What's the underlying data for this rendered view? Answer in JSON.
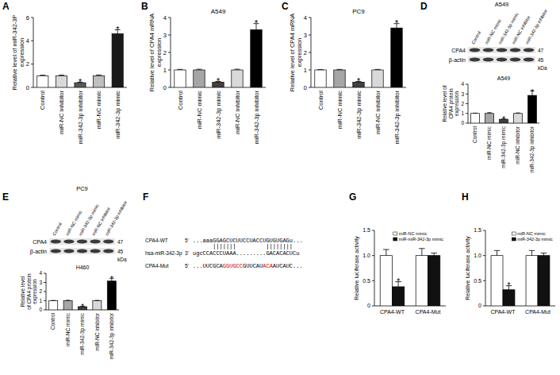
{
  "chart_data": [
    {
      "type": "bar",
      "panel": "A",
      "ylabel": "Relative level of miR-342-3P expression",
      "categories": [
        "Control",
        "miR-NC inhibitor",
        "miR-342-3p inhibitor",
        "miR-NC mimic",
        "miR-342-3p mimic"
      ],
      "values": [
        1,
        1,
        0.4,
        1,
        4.6
      ],
      "errors": [
        0.05,
        0.06,
        0.05,
        0.07,
        0.35
      ],
      "colors": [
        "#ffffff",
        "#d9d9d9",
        "#595959",
        "#bfbfbf",
        "#1a1a1a"
      ],
      "significance": [
        null,
        null,
        "*",
        null,
        "*"
      ],
      "ylim": [
        0,
        6
      ],
      "yticks": [
        0,
        2,
        4,
        6
      ]
    },
    {
      "type": "bar",
      "panel": "B",
      "title": "A549",
      "ylabel": "Relative level of CPA4 mRNA expression",
      "categories": [
        "Control",
        "miR-NC mimic",
        "miR-342-3p mimic",
        "miR-NC inhibitor",
        "miR-342-3p inhibitor"
      ],
      "values": [
        1,
        1,
        0.3,
        1,
        3.3
      ],
      "errors": [
        0.03,
        0.04,
        0.04,
        0.04,
        0.35
      ],
      "colors": [
        "#ffffff",
        "#a6a6a6",
        "#404040",
        "#d9d9d9",
        "#000000"
      ],
      "significance": [
        null,
        null,
        "*",
        null,
        "*"
      ],
      "ylim": [
        0,
        4
      ],
      "yticks": [
        0,
        1,
        2,
        3,
        4
      ]
    },
    {
      "type": "bar",
      "panel": "C",
      "title": "PC9",
      "ylabel": "Relative level of CPA4 mRNA expression",
      "categories": [
        "Control",
        "miR-NC mimic",
        "miR-342-3p mimic",
        "miR-NC inhibitor",
        "miR-342-3p inhibitor"
      ],
      "values": [
        1,
        1,
        0.3,
        1,
        3.4
      ],
      "errors": [
        0.02,
        0.03,
        0.04,
        0.03,
        0.25
      ],
      "colors": [
        "#ffffff",
        "#a6a6a6",
        "#404040",
        "#d9d9d9",
        "#000000"
      ],
      "significance": [
        null,
        null,
        "*",
        null,
        "*"
      ],
      "ylim": [
        0,
        4
      ],
      "yticks": [
        0,
        1,
        2,
        3,
        4
      ]
    },
    {
      "type": "bar",
      "title": "A549",
      "ylabel": "Relative level of CPA4 protein expression",
      "categories": [
        "Control",
        "miR-NC mimic",
        "miR-342-3p mimic",
        "miR-NC inhibitor",
        "miR-342-3p inhibitor"
      ],
      "values": [
        1,
        1,
        0.4,
        1,
        2.85
      ],
      "errors": [
        0.03,
        0.08,
        0.06,
        0.05,
        0.45
      ],
      "colors": [
        "#ffffff",
        "#a6a6a6",
        "#404040",
        "#d9d9d9",
        "#000000"
      ],
      "significance": [
        null,
        null,
        "*",
        null,
        "*"
      ],
      "ylim": [
        0,
        4
      ],
      "yticks": [
        0,
        1,
        2,
        3,
        4
      ]
    },
    {
      "type": "bar",
      "title": "H460",
      "ylabel": "Relative level of CPA4 protein expression",
      "categories": [
        "Control",
        "miR-NC mimic",
        "miR-342-3p mimic",
        "miR-NC inhibitor",
        "miR-342-3p inhibitor"
      ],
      "values": [
        1,
        1,
        0.35,
        1,
        3.15
      ],
      "errors": [
        0.03,
        0.05,
        0.05,
        0.04,
        0.3
      ],
      "colors": [
        "#ffffff",
        "#a6a6a6",
        "#404040",
        "#d9d9d9",
        "#000000"
      ],
      "significance": [
        null,
        null,
        "*",
        null,
        "*"
      ],
      "ylim": [
        0,
        4
      ],
      "yticks": [
        0,
        1,
        2,
        3,
        4
      ]
    },
    {
      "type": "bar",
      "panel": "G",
      "ylabel": "Relative luciferase activity",
      "categories": [
        "CPA4-WT",
        "CPA4-Mut"
      ],
      "series": [
        {
          "name": "miR-NC mimic",
          "color": "#ffffff",
          "values": [
            1,
            1
          ],
          "errors": [
            0.12,
            0.14
          ]
        },
        {
          "name": "miR-miR-342-3p mimic",
          "color": "#111111",
          "values": [
            0.38,
            1
          ],
          "errors": [
            0.1,
            0.05
          ],
          "significance": [
            "*",
            null
          ]
        }
      ],
      "legend": "top-right",
      "ylim": [
        0,
        1.5
      ],
      "yticks": [
        0,
        0.5,
        {
          "value": 1,
          "label": "1.0"
        },
        1.5
      ]
    },
    {
      "type": "bar",
      "panel": "H",
      "ylabel": "Relative luciferase activity",
      "categories": [
        "CPA4-WT",
        "CPA4-Mut"
      ],
      "series": [
        {
          "name": "miR-NC mimic",
          "color": "#ffffff",
          "values": [
            1,
            1
          ],
          "errors": [
            0.1,
            0.1
          ]
        },
        {
          "name": "miR-342-3p mimic",
          "color": "#111111",
          "values": [
            0.32,
            1
          ],
          "errors": [
            0.08,
            0.05
          ],
          "significance": [
            "*",
            null
          ]
        }
      ],
      "legend": "top-right",
      "ylim": [
        0,
        1.5
      ],
      "yticks": [
        0,
        0.5,
        {
          "value": 1,
          "label": "1.0"
        },
        1.5
      ]
    }
  ],
  "blots": [
    {
      "panel": "D",
      "title": "A549",
      "lanes": [
        "Control",
        "miR-NC mimic",
        "miR-342-3p mimic",
        "miR-NC inhibitor",
        "miR-342-3p inhibitor"
      ],
      "rows": [
        {
          "label": "CPA4",
          "kda": "47"
        },
        {
          "label": "β-actin",
          "kda": "45"
        }
      ],
      "unit": "kDa"
    },
    {
      "panel": "E",
      "title": "PC9",
      "lanes": [
        "Control",
        "miR-NC mimic",
        "miR-342-3p mimic",
        "miR-NC inhibitor",
        "miR-342-3p inhibitor"
      ],
      "rows": [
        {
          "label": "CPA4",
          "kda": "47"
        },
        {
          "label": "β-actin",
          "kda": "45"
        }
      ],
      "unit": "kDa"
    }
  ],
  "alignment": {
    "panel": "F",
    "rows": [
      {
        "name": "CPA4-WT",
        "end": "5'",
        "segments": [
          {
            "text": "...aaaGGAGCUCUUCCUACCUGUGUGAGu...",
            "color": "#000000"
          }
        ]
      },
      {
        "name": "hsa-miR-342-3p",
        "end": "3'",
        "segments": [
          {
            "text": "ugcCCACCCUAAA.........GACACACUCu",
            "color": "#000000"
          }
        ]
      },
      {
        "name": "CPA4-Mut",
        "end": "5'",
        "segments": [
          {
            "text": "...UUCGCA",
            "color": "#000000"
          },
          {
            "text": "GGUGCC",
            "color": "#cc0000"
          },
          {
            "text": "GUUCAU",
            "color": "#000000"
          },
          {
            "text": "ACA",
            "color": "#cc0000"
          },
          {
            "text": "AUCAUC...",
            "color": "#000000"
          }
        ]
      }
    ]
  }
}
